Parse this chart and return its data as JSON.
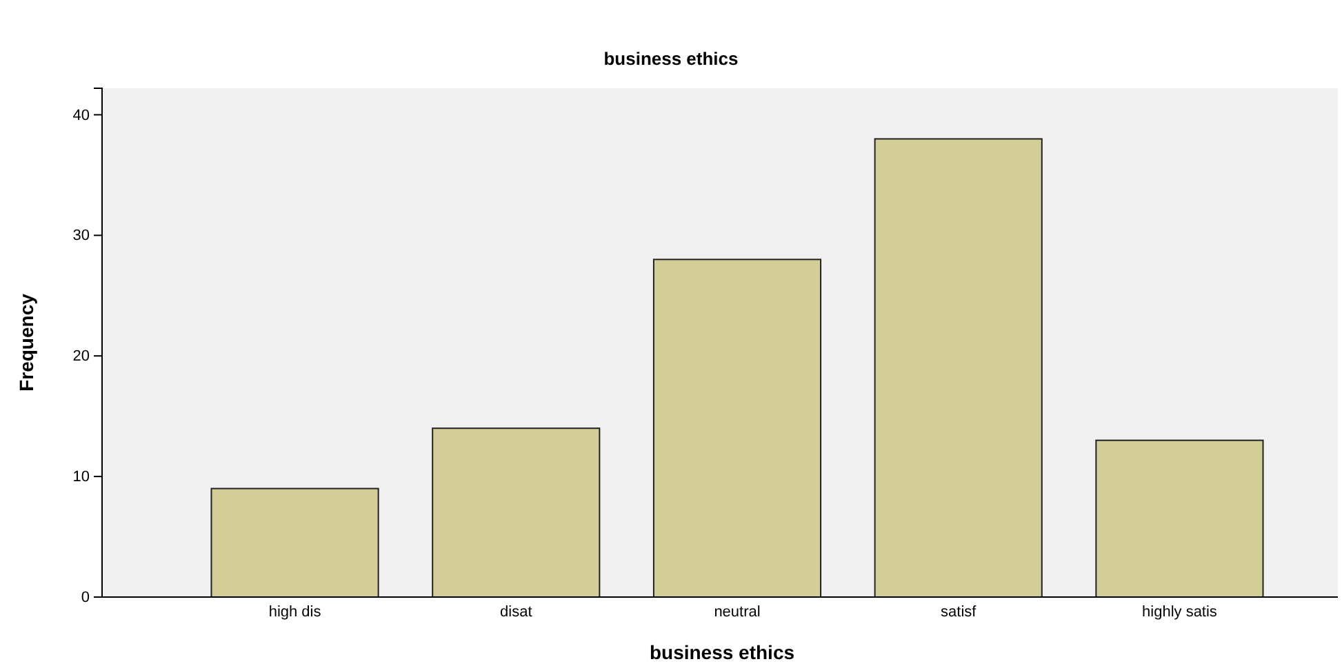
{
  "chart_data": {
    "type": "bar",
    "title": "business ethics",
    "xlabel": "business ethics",
    "ylabel": "Frequency",
    "categories": [
      "high dis",
      "disat",
      "neutral",
      "satisf",
      "highly satis"
    ],
    "values": [
      9,
      14,
      28,
      38,
      13
    ],
    "color": "#d3ce97",
    "ylim": [
      0,
      42.2
    ],
    "yticks": [
      0,
      10,
      20,
      30,
      40
    ],
    "grid": false
  }
}
